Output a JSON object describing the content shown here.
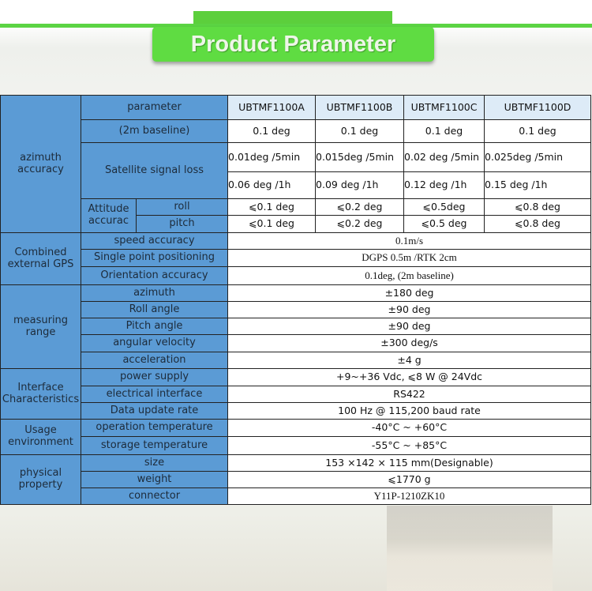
{
  "title": "Product Parameter",
  "header": {
    "param_label": "parameter",
    "models": [
      "UBTMF1100A",
      "UBTMF1100B",
      "UBTMF1100C",
      "UBTMF1100D"
    ]
  },
  "azimuth": {
    "group": "azimuth accuracy",
    "baseline_label": "(2m baseline)",
    "baseline": [
      "0.1 deg",
      "0.1 deg",
      "0.1 deg",
      "0.1 deg"
    ],
    "sat_label": "Satellite signal loss",
    "sat_5min": [
      "0.01deg /5min",
      "0.015deg /5min",
      "0.02 deg /5min",
      "0.025deg /5min"
    ],
    "sat_1h": [
      "0.06 deg /1h",
      "0.09 deg /1h",
      "0.12 deg /1h",
      "0.15 deg /1h"
    ],
    "attitude_label": "Attitude accurac",
    "roll_label": "roll",
    "roll": [
      "⩽0.1 deg",
      "⩽0.2 deg",
      "⩽0.5deg",
      "⩽0.8 deg"
    ],
    "pitch_label": "pitch",
    "pitch": [
      "⩽0.1 deg",
      "⩽0.2 deg",
      "⩽0.5 deg",
      "⩽0.8 deg"
    ]
  },
  "gps": {
    "group": "Combined external GPS",
    "rows": [
      {
        "label": "speed accuracy",
        "value": "0.1m/s"
      },
      {
        "label": "Single point positioning",
        "value": "DGPS 0.5m /RTK 2cm"
      },
      {
        "label": "Orientation accuracy",
        "value": "0.1deg, (2m baseline)"
      }
    ]
  },
  "range": {
    "group": "measuring range",
    "rows": [
      {
        "label": "azimuth",
        "value": "±180 deg"
      },
      {
        "label": "Roll angle",
        "value": "±90 deg"
      },
      {
        "label": "Pitch angle",
        "value": "±90 deg"
      },
      {
        "label": "angular velocity",
        "value": "±300 deg/s"
      },
      {
        "label": "acceleration",
        "value": "±4 g"
      }
    ]
  },
  "interface": {
    "group": "Interface Characteristics",
    "rows": [
      {
        "label": "power supply",
        "value": "+9~+36 Vdc, ⩽8 W @ 24Vdc"
      },
      {
        "label": "electrical interface",
        "value": "RS422"
      },
      {
        "label": "Data update rate",
        "value": "100 Hz @ 115,200 baud rate"
      }
    ]
  },
  "usage": {
    "group": "Usage environment",
    "rows": [
      {
        "label": "operation temperature",
        "value": "-40°C ~ +60°C"
      },
      {
        "label": "storage temperature",
        "value": "-55°C ~ +85°C"
      }
    ]
  },
  "physical": {
    "group": "physical property",
    "rows": [
      {
        "label": "size",
        "value": "153 ×142 × 115 mm(Designable)"
      },
      {
        "label": "weight",
        "value": "⩽1770 g"
      },
      {
        "label": "connector",
        "value": "Y11P-1210ZK10"
      }
    ]
  }
}
